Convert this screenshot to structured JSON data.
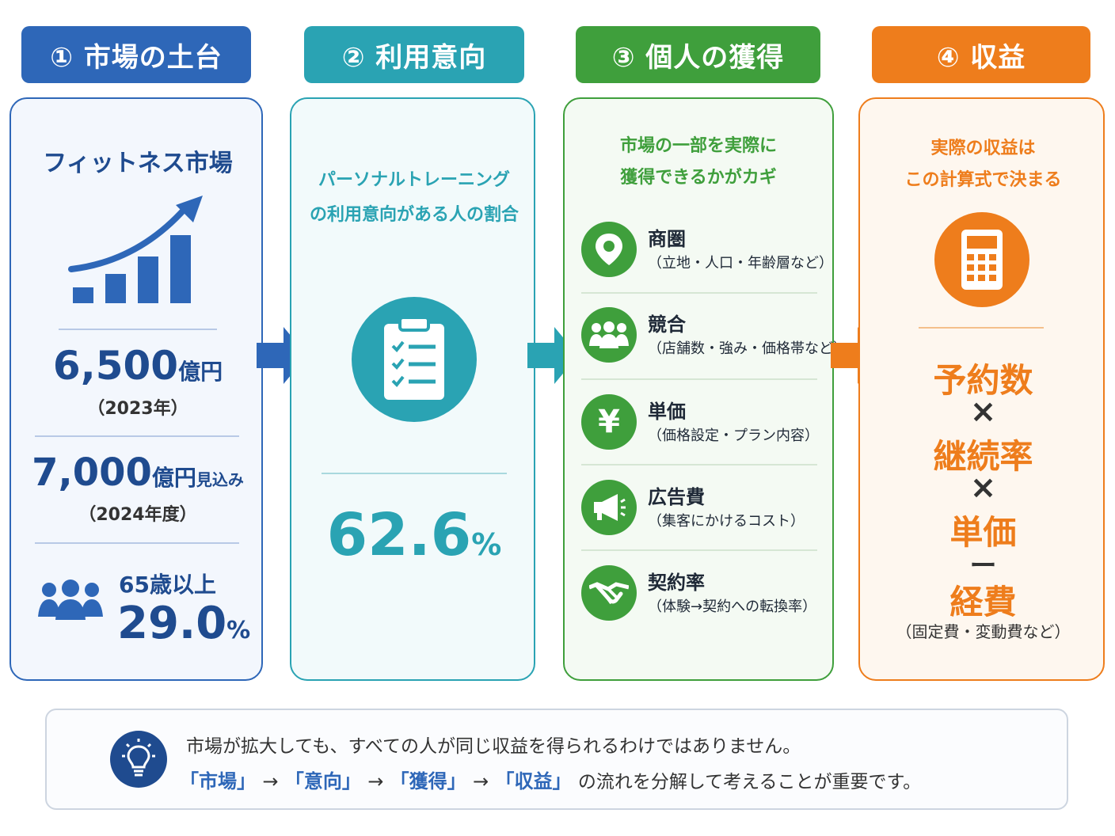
{
  "steps": [
    {
      "label": "① 市場の土台",
      "color": "#2e67b8"
    },
    {
      "label": "② 利用意向",
      "color": "#2aa3b3"
    },
    {
      "label": "③ 個人の獲得",
      "color": "#3f9f3c"
    },
    {
      "label": "④ 収益",
      "color": "#ee7d1c"
    }
  ],
  "market": {
    "title": "フィットネス市場",
    "value1": "6,500",
    "unit1": "億円",
    "year1": "（2023年）",
    "value2": "7,000",
    "unit2": "億円",
    "suffix2": "見込み",
    "year2": "（2024年度）",
    "age_label": "65歳以上",
    "age_value": "29.0",
    "age_unit": "%",
    "chart_icon": "bar-growth-chart-icon",
    "people_icon": "people-group-icon"
  },
  "intent": {
    "desc_line1": "パーソナルトレーニング",
    "desc_line2": "の利用意向がある人の割合",
    "value": "62.6",
    "unit": "%",
    "icon": "clipboard-checklist-icon"
  },
  "acquire": {
    "desc_line1": "市場の一部を実際に",
    "desc_line2": "獲得できるかがカギ",
    "items": [
      {
        "title": "商圏",
        "sub": "（立地・人口・年齢層など）",
        "icon": "location-pin-icon"
      },
      {
        "title": "競合",
        "sub": "（店舗数・強み・価格帯など）",
        "icon": "people-group-icon"
      },
      {
        "title": "単価",
        "sub": "（価格設定・プラン内容）",
        "icon": "yen-icon"
      },
      {
        "title": "広告費",
        "sub": "（集客にかけるコスト）",
        "icon": "megaphone-icon"
      },
      {
        "title": "契約率",
        "sub": "（体験→契約への転換率）",
        "icon": "handshake-icon"
      }
    ]
  },
  "revenue": {
    "desc_line1": "実際の収益は",
    "desc_line2": "この計算式で決まる",
    "icon": "calculator-icon",
    "formula": [
      "予約数",
      "×",
      "継続率",
      "×",
      "単価",
      "ー",
      "経費"
    ],
    "note": "（固定費・変動費など）"
  },
  "footer": {
    "icon": "lightbulb-icon",
    "line1": "市場が拡大しても、すべての人が同じ収益を得られるわけではありません。",
    "flow": [
      "「市場」",
      "→",
      "「意向」",
      "→",
      "「獲得」",
      "→",
      "「収益」"
    ],
    "line2_tail": "の流れを分解して考えることが重要です。"
  }
}
